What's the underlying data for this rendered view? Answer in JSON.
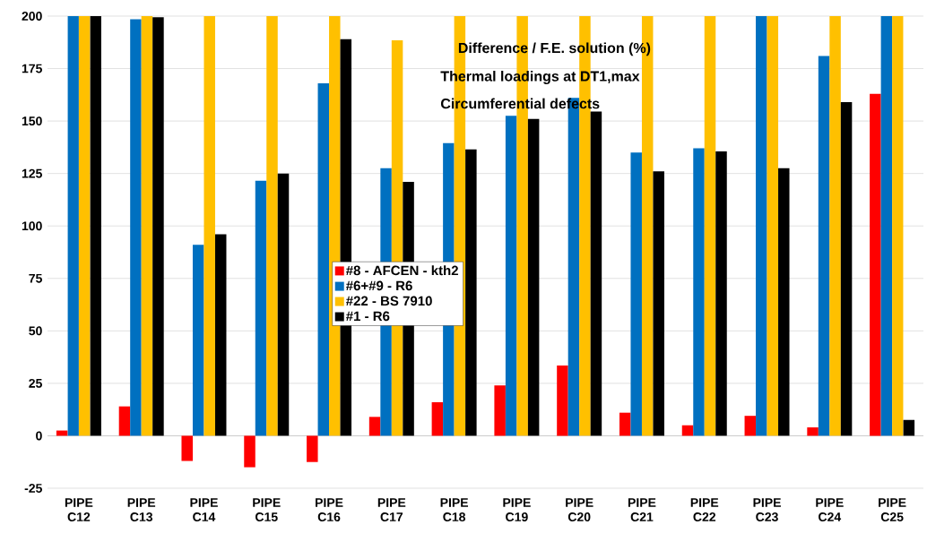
{
  "chart_data": {
    "type": "bar",
    "title": "Difference / F.E. solution (%)",
    "annotations": [
      "Thermal loadings at DT1,max",
      "Circumferential defects"
    ],
    "categories": [
      "PIPE C12",
      "PIPE C13",
      "PIPE C14",
      "PIPE C15",
      "PIPE C16",
      "PIPE C17",
      "PIPE C18",
      "PIPE C19",
      "PIPE C20",
      "PIPE C21",
      "PIPE C22",
      "PIPE C23",
      "PIPE C24",
      "PIPE C25"
    ],
    "series": [
      {
        "name": "#8 - AFCEN - kth2",
        "color": "#ff0000",
        "values": [
          2.5,
          14,
          -12,
          -15,
          -12.5,
          9,
          16,
          24,
          33.5,
          11,
          5,
          9.5,
          4,
          163
        ]
      },
      {
        "name": "#6+#9 - R6",
        "color": "#0070c0",
        "values": [
          200,
          198.5,
          91,
          121.5,
          168,
          127.5,
          139.5,
          152.5,
          161,
          135,
          137,
          200,
          181,
          200
        ]
      },
      {
        "name": "#22 - BS 7910",
        "color": "#ffc000",
        "values": [
          200,
          200,
          200,
          200,
          200,
          188.5,
          200,
          200,
          200,
          200,
          200,
          200,
          200,
          200
        ]
      },
      {
        "name": "#1 - R6",
        "color": "#000000",
        "values": [
          200,
          199.5,
          96,
          125,
          189,
          121,
          136.5,
          151,
          154.5,
          126,
          135.5,
          127.5,
          159,
          7.5
        ]
      }
    ],
    "ylim": [
      -25,
      200
    ],
    "yticks": [
      -25,
      0,
      25,
      50,
      75,
      100,
      125,
      150,
      175,
      200
    ],
    "grid": "y",
    "legend": "center"
  }
}
